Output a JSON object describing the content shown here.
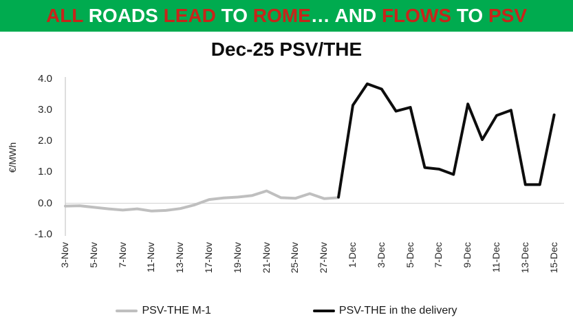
{
  "banner": {
    "bg_color": "#00AB4F",
    "red_color": "#C8241A",
    "white_color": "#FFFFFF",
    "segments": [
      {
        "text": "ALL ",
        "color": "#C8241A"
      },
      {
        "text": "ROADS ",
        "color": "#FFFFFF"
      },
      {
        "text": "LEAD ",
        "color": "#C8241A"
      },
      {
        "text": "TO ",
        "color": "#FFFFFF"
      },
      {
        "text": "ROME",
        "color": "#C8241A"
      },
      {
        "text": "… ",
        "color": "#FFFFFF"
      },
      {
        "text": "AND ",
        "color": "#FFFFFF"
      },
      {
        "text": "FLOWS ",
        "color": "#C8241A"
      },
      {
        "text": "TO ",
        "color": "#FFFFFF"
      },
      {
        "text": "PSV",
        "color": "#C8241A"
      }
    ]
  },
  "chart_data": {
    "type": "line",
    "title": "Dec-25 PSV/THE",
    "xlabel": "",
    "ylabel": "€/MWh",
    "ylim": [
      -1.0,
      4.0
    ],
    "yticks": [
      "4.0",
      "3.0",
      "2.0",
      "1.0",
      "0.0",
      "-1.0"
    ],
    "grid": "zero-line-only",
    "legend_position": "bottom",
    "x_categories": [
      "3-Nov",
      "4-Nov",
      "5-Nov",
      "6-Nov",
      "7-Nov",
      "10-Nov",
      "11-Nov",
      "12-Nov",
      "13-Nov",
      "14-Nov",
      "17-Nov",
      "18-Nov",
      "19-Nov",
      "20-Nov",
      "21-Nov",
      "24-Nov",
      "25-Nov",
      "26-Nov",
      "27-Nov",
      "28-Nov",
      "1-Dec",
      "2-Dec",
      "3-Dec",
      "4-Dec",
      "5-Dec",
      "6-Dec",
      "7-Dec",
      "8-Dec",
      "9-Dec",
      "10-Dec",
      "11-Dec",
      "12-Dec",
      "13-Dec",
      "14-Dec",
      "15-Dec"
    ],
    "xtick_labels": [
      "3-Nov",
      "5-Nov",
      "7-Nov",
      "11-Nov",
      "13-Nov",
      "17-Nov",
      "19-Nov",
      "21-Nov",
      "25-Nov",
      "27-Nov",
      "1-Dec",
      "3-Dec",
      "5-Dec",
      "7-Dec",
      "9-Dec",
      "11-Dec",
      "13-Dec",
      "15-Dec"
    ],
    "xtick_indices": [
      0,
      2,
      4,
      6,
      8,
      10,
      12,
      14,
      16,
      18,
      20,
      22,
      24,
      26,
      28,
      30,
      32,
      34
    ],
    "series": [
      {
        "name": "PSV-THE M-1",
        "color": "#BFBFBF",
        "start_index": 0,
        "values": [
          -0.09,
          -0.08,
          -0.13,
          -0.18,
          -0.22,
          -0.18,
          -0.25,
          -0.23,
          -0.17,
          -0.05,
          0.12,
          0.17,
          0.2,
          0.25,
          0.4,
          0.18,
          0.16,
          0.31,
          0.15,
          0.18
        ]
      },
      {
        "name": "PSV-THE in the delivery",
        "color": "#0D0D0D",
        "start_index": 19,
        "values": [
          0.2,
          3.16,
          3.85,
          3.68,
          2.97,
          3.09,
          1.15,
          1.1,
          0.93,
          3.2,
          2.05,
          2.83,
          3.0,
          0.6,
          0.6,
          2.85
        ]
      }
    ]
  }
}
